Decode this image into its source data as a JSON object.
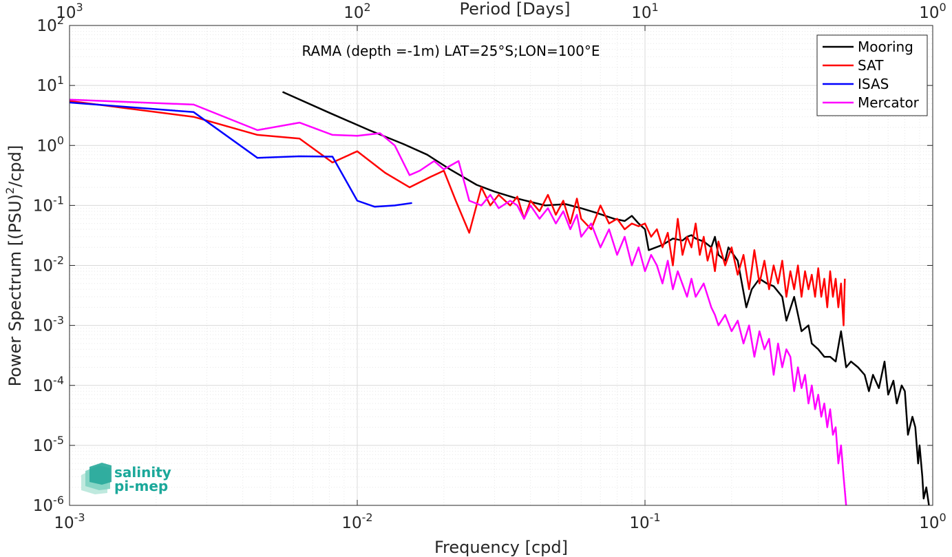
{
  "chart_data": {
    "type": "line",
    "title": "RAMA (depth =-1m) LAT=25°S;LON=100°E",
    "xlabel": "Frequency [cpd]",
    "ylabel": "Power Spectrum [(PSU)²/cpd]",
    "ylabel_parts": {
      "main": "Power Spectrum [(PSU)",
      "sup": "2",
      "tail": "/cpd]"
    },
    "top_xlabel": "Period [Days]",
    "x_scale": "log",
    "y_scale": "log",
    "xlim": [
      0.001,
      1
    ],
    "ylim": [
      1e-06,
      100
    ],
    "grid": true,
    "legend_position": "top-right",
    "x_ticks": [
      {
        "value": 0.001,
        "base": "10",
        "exp": "-3"
      },
      {
        "value": 0.01,
        "base": "10",
        "exp": "-2"
      },
      {
        "value": 0.1,
        "base": "10",
        "exp": "-1"
      },
      {
        "value": 1,
        "base": "10",
        "exp": "0"
      }
    ],
    "y_ticks": [
      {
        "value": 100,
        "base": "10",
        "exp": "2"
      },
      {
        "value": 10,
        "base": "10",
        "exp": "1"
      },
      {
        "value": 1,
        "base": "10",
        "exp": "0"
      },
      {
        "value": 0.1,
        "base": "10",
        "exp": "-1"
      },
      {
        "value": 0.01,
        "base": "10",
        "exp": "-2"
      },
      {
        "value": 0.001,
        "base": "10",
        "exp": "-3"
      },
      {
        "value": 0.0001,
        "base": "10",
        "exp": "-4"
      },
      {
        "value": 1e-05,
        "base": "10",
        "exp": "-5"
      },
      {
        "value": 1e-06,
        "base": "10",
        "exp": "-6"
      }
    ],
    "top_ticks": [
      {
        "value": 0.001,
        "base": "10",
        "exp": "3"
      },
      {
        "value": 0.01,
        "base": "10",
        "exp": "2"
      },
      {
        "value": 0.1,
        "base": "10",
        "exp": "1"
      },
      {
        "value": 1,
        "base": "10",
        "exp": "0"
      }
    ],
    "series": [
      {
        "name": "Mooring",
        "color": "#000000",
        "points": [
          [
            0.0055,
            7.8
          ],
          [
            0.008,
            3.5
          ],
          [
            0.011,
            1.8
          ],
          [
            0.0145,
            1.05
          ],
          [
            0.0175,
            0.7
          ],
          [
            0.021,
            0.4
          ],
          [
            0.026,
            0.22
          ],
          [
            0.03,
            0.17
          ],
          [
            0.036,
            0.13
          ],
          [
            0.045,
            0.1
          ],
          [
            0.053,
            0.105
          ],
          [
            0.06,
            0.09
          ],
          [
            0.068,
            0.075
          ],
          [
            0.078,
            0.06
          ],
          [
            0.085,
            0.055
          ],
          [
            0.09,
            0.067
          ],
          [
            0.095,
            0.05
          ],
          [
            0.1,
            0.04
          ],
          [
            0.103,
            0.018
          ],
          [
            0.115,
            0.022
          ],
          [
            0.125,
            0.028
          ],
          [
            0.135,
            0.026
          ],
          [
            0.14,
            0.03
          ],
          [
            0.145,
            0.032
          ],
          [
            0.15,
            0.028
          ],
          [
            0.16,
            0.025
          ],
          [
            0.17,
            0.02
          ],
          [
            0.175,
            0.03
          ],
          [
            0.18,
            0.015
          ],
          [
            0.19,
            0.012
          ],
          [
            0.195,
            0.02
          ],
          [
            0.21,
            0.012
          ],
          [
            0.225,
            0.002
          ],
          [
            0.235,
            0.004
          ],
          [
            0.25,
            0.006
          ],
          [
            0.265,
            0.005
          ],
          [
            0.28,
            0.0045
          ],
          [
            0.3,
            0.003
          ],
          [
            0.31,
            0.0012
          ],
          [
            0.33,
            0.003
          ],
          [
            0.35,
            0.0008
          ],
          [
            0.37,
            0.001
          ],
          [
            0.38,
            0.0005
          ],
          [
            0.4,
            0.0004
          ],
          [
            0.42,
            0.0003
          ],
          [
            0.44,
            0.0003
          ],
          [
            0.46,
            0.00025
          ],
          [
            0.48,
            0.0008
          ],
          [
            0.5,
            0.0002
          ],
          [
            0.52,
            0.00025
          ],
          [
            0.55,
            0.0002
          ],
          [
            0.58,
            0.00015
          ],
          [
            0.6,
            8e-05
          ],
          [
            0.62,
            0.00015
          ],
          [
            0.65,
            9e-05
          ],
          [
            0.68,
            0.00025
          ],
          [
            0.7,
            7e-05
          ],
          [
            0.73,
            0.00012
          ],
          [
            0.75,
            5e-05
          ],
          [
            0.78,
            0.0001
          ],
          [
            0.8,
            8e-05
          ],
          [
            0.82,
            1.5e-05
          ],
          [
            0.85,
            3e-05
          ],
          [
            0.87,
            2e-05
          ],
          [
            0.89,
            5e-06
          ],
          [
            0.9,
            1e-05
          ],
          [
            0.92,
            3e-06
          ],
          [
            0.93,
            1.3e-06
          ],
          [
            0.95,
            2e-06
          ],
          [
            0.97,
            1e-06
          ]
        ]
      },
      {
        "name": "SAT",
        "color": "#ff0000",
        "points": [
          [
            0.001,
            5.5
          ],
          [
            0.0027,
            3.0
          ],
          [
            0.0045,
            1.5
          ],
          [
            0.0063,
            1.3
          ],
          [
            0.0082,
            0.52
          ],
          [
            0.01,
            0.8
          ],
          [
            0.0125,
            0.35
          ],
          [
            0.0152,
            0.2
          ],
          [
            0.018,
            0.3
          ],
          [
            0.02,
            0.38
          ],
          [
            0.022,
            0.12
          ],
          [
            0.0245,
            0.035
          ],
          [
            0.027,
            0.2
          ],
          [
            0.029,
            0.1
          ],
          [
            0.031,
            0.15
          ],
          [
            0.034,
            0.1
          ],
          [
            0.036,
            0.14
          ],
          [
            0.038,
            0.06
          ],
          [
            0.04,
            0.12
          ],
          [
            0.043,
            0.08
          ],
          [
            0.046,
            0.15
          ],
          [
            0.049,
            0.07
          ],
          [
            0.052,
            0.12
          ],
          [
            0.055,
            0.05
          ],
          [
            0.058,
            0.13
          ],
          [
            0.06,
            0.06
          ],
          [
            0.065,
            0.04
          ],
          [
            0.07,
            0.1
          ],
          [
            0.075,
            0.05
          ],
          [
            0.08,
            0.06
          ],
          [
            0.085,
            0.04
          ],
          [
            0.09,
            0.05
          ],
          [
            0.095,
            0.045
          ],
          [
            0.1,
            0.05
          ],
          [
            0.105,
            0.03
          ],
          [
            0.11,
            0.04
          ],
          [
            0.115,
            0.02
          ],
          [
            0.12,
            0.035
          ],
          [
            0.125,
            0.01
          ],
          [
            0.13,
            0.06
          ],
          [
            0.135,
            0.015
          ],
          [
            0.14,
            0.03
          ],
          [
            0.145,
            0.02
          ],
          [
            0.15,
            0.05
          ],
          [
            0.155,
            0.015
          ],
          [
            0.16,
            0.03
          ],
          [
            0.165,
            0.012
          ],
          [
            0.17,
            0.02
          ],
          [
            0.175,
            0.008
          ],
          [
            0.18,
            0.025
          ],
          [
            0.19,
            0.01
          ],
          [
            0.2,
            0.02
          ],
          [
            0.21,
            0.007
          ],
          [
            0.22,
            0.015
          ],
          [
            0.23,
            0.004
          ],
          [
            0.24,
            0.018
          ],
          [
            0.25,
            0.005
          ],
          [
            0.26,
            0.012
          ],
          [
            0.27,
            0.004
          ],
          [
            0.28,
            0.01
          ],
          [
            0.29,
            0.005
          ],
          [
            0.3,
            0.012
          ],
          [
            0.31,
            0.003
          ],
          [
            0.32,
            0.008
          ],
          [
            0.33,
            0.004
          ],
          [
            0.34,
            0.01
          ],
          [
            0.35,
            0.003
          ],
          [
            0.36,
            0.008
          ],
          [
            0.37,
            0.004
          ],
          [
            0.38,
            0.007
          ],
          [
            0.39,
            0.003
          ],
          [
            0.4,
            0.009
          ],
          [
            0.41,
            0.003
          ],
          [
            0.42,
            0.006
          ],
          [
            0.43,
            0.002
          ],
          [
            0.44,
            0.008
          ],
          [
            0.45,
            0.003
          ],
          [
            0.46,
            0.006
          ],
          [
            0.47,
            0.002
          ],
          [
            0.48,
            0.005
          ],
          [
            0.49,
            0.001
          ],
          [
            0.495,
            0.006
          ]
        ]
      },
      {
        "name": "ISAS",
        "color": "#0000ff",
        "points": [
          [
            0.001,
            5.2
          ],
          [
            0.0027,
            3.6
          ],
          [
            0.0045,
            0.62
          ],
          [
            0.0063,
            0.66
          ],
          [
            0.0082,
            0.65
          ],
          [
            0.01,
            0.12
          ],
          [
            0.0115,
            0.095
          ],
          [
            0.0135,
            0.1
          ],
          [
            0.0155,
            0.11
          ]
        ]
      },
      {
        "name": "Mercator",
        "color": "#ff00ff",
        "points": [
          [
            0.001,
            5.8
          ],
          [
            0.0027,
            4.8
          ],
          [
            0.0045,
            1.8
          ],
          [
            0.0063,
            2.4
          ],
          [
            0.0082,
            1.5
          ],
          [
            0.01,
            1.45
          ],
          [
            0.012,
            1.6
          ],
          [
            0.0135,
            1.0
          ],
          [
            0.0152,
            0.32
          ],
          [
            0.0165,
            0.38
          ],
          [
            0.0185,
            0.55
          ],
          [
            0.02,
            0.4
          ],
          [
            0.0225,
            0.55
          ],
          [
            0.0245,
            0.12
          ],
          [
            0.027,
            0.1
          ],
          [
            0.029,
            0.15
          ],
          [
            0.031,
            0.09
          ],
          [
            0.034,
            0.12
          ],
          [
            0.036,
            0.1
          ],
          [
            0.038,
            0.06
          ],
          [
            0.04,
            0.1
          ],
          [
            0.043,
            0.06
          ],
          [
            0.046,
            0.09
          ],
          [
            0.049,
            0.05
          ],
          [
            0.052,
            0.08
          ],
          [
            0.055,
            0.04
          ],
          [
            0.058,
            0.07
          ],
          [
            0.06,
            0.03
          ],
          [
            0.065,
            0.05
          ],
          [
            0.07,
            0.02
          ],
          [
            0.075,
            0.04
          ],
          [
            0.08,
            0.015
          ],
          [
            0.085,
            0.03
          ],
          [
            0.09,
            0.01
          ],
          [
            0.095,
            0.02
          ],
          [
            0.1,
            0.008
          ],
          [
            0.105,
            0.015
          ],
          [
            0.11,
            0.01
          ],
          [
            0.115,
            0.005
          ],
          [
            0.12,
            0.012
          ],
          [
            0.125,
            0.004
          ],
          [
            0.13,
            0.008
          ],
          [
            0.14,
            0.003
          ],
          [
            0.145,
            0.006
          ],
          [
            0.15,
            0.003
          ],
          [
            0.16,
            0.005
          ],
          [
            0.17,
            0.002
          ],
          [
            0.175,
            0.0015
          ],
          [
            0.18,
            0.001
          ],
          [
            0.19,
            0.0015
          ],
          [
            0.2,
            0.0008
          ],
          [
            0.21,
            0.0012
          ],
          [
            0.22,
            0.0005
          ],
          [
            0.23,
            0.001
          ],
          [
            0.24,
            0.0003
          ],
          [
            0.25,
            0.0008
          ],
          [
            0.26,
            0.0004
          ],
          [
            0.27,
            0.0006
          ],
          [
            0.28,
            0.00015
          ],
          [
            0.29,
            0.0005
          ],
          [
            0.3,
            0.0002
          ],
          [
            0.31,
            0.0004
          ],
          [
            0.32,
            0.0003
          ],
          [
            0.33,
            8e-05
          ],
          [
            0.34,
            0.0002
          ],
          [
            0.35,
            9e-05
          ],
          [
            0.36,
            0.00015
          ],
          [
            0.37,
            5e-05
          ],
          [
            0.38,
            0.0001
          ],
          [
            0.39,
            4e-05
          ],
          [
            0.4,
            7e-05
          ],
          [
            0.41,
            3e-05
          ],
          [
            0.42,
            5e-05
          ],
          [
            0.43,
            2e-05
          ],
          [
            0.44,
            4e-05
          ],
          [
            0.45,
            1.5e-05
          ],
          [
            0.46,
            2e-05
          ],
          [
            0.47,
            5e-06
          ],
          [
            0.48,
            1e-05
          ],
          [
            0.49,
            3e-06
          ],
          [
            0.5,
            1e-06
          ]
        ]
      }
    ]
  },
  "logo": {
    "line1": "salinity",
    "line2": "pi-mep"
  }
}
